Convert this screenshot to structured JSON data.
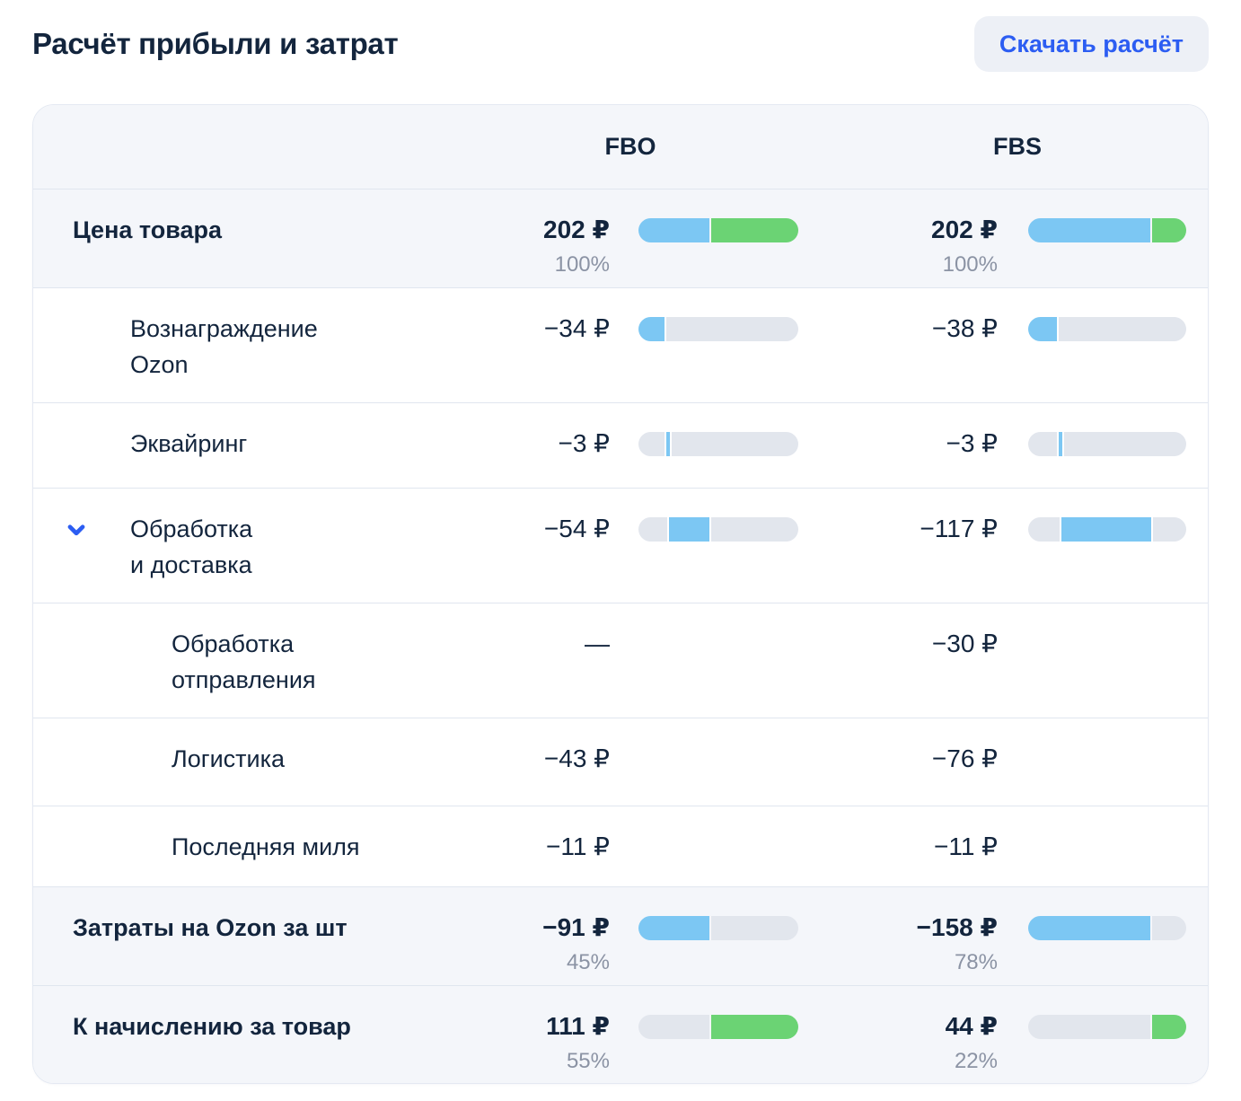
{
  "page_title": "Расчёт прибыли и затрат",
  "download_button": "Скачать расчёт",
  "colors": {
    "accent": "#2c5df2",
    "blue": "#7cc7f3",
    "green": "#6bd374",
    "track": "#e2e6ed",
    "percent_text": "#8b93a4"
  },
  "table": {
    "columns": [
      "FBO",
      "FBS"
    ],
    "rows": [
      {
        "label": "Цена товара",
        "bold": true,
        "shaded": true,
        "level": 0,
        "expandable": false,
        "fbo": {
          "value": "202 ₽",
          "percent": "100%",
          "bar": [
            {
              "c": "blue",
              "f": 0,
              "t": 0.45
            },
            {
              "c": "green",
              "f": 0.45,
              "t": 1
            }
          ]
        },
        "fbs": {
          "value": "202 ₽",
          "percent": "100%",
          "bar": [
            {
              "c": "blue",
              "f": 0,
              "t": 0.78
            },
            {
              "c": "green",
              "f": 0.78,
              "t": 1
            }
          ]
        }
      },
      {
        "label": "Вознаграждение\nOzon",
        "bold": false,
        "shaded": false,
        "level": 1,
        "expandable": false,
        "fbo": {
          "value": "−34 ₽",
          "percent": "",
          "bar": [
            {
              "c": "blue",
              "f": 0,
              "t": 0.168
            },
            {
              "c": "track",
              "f": 0.168,
              "t": 1
            }
          ]
        },
        "fbs": {
          "value": "−38 ₽",
          "percent": "",
          "bar": [
            {
              "c": "blue",
              "f": 0,
              "t": 0.188
            },
            {
              "c": "track",
              "f": 0.188,
              "t": 1
            }
          ]
        }
      },
      {
        "label": "Эквайринг",
        "bold": false,
        "shaded": false,
        "level": 1,
        "expandable": false,
        "fbo": {
          "value": "−3 ₽",
          "percent": "",
          "bar": [
            {
              "c": "track",
              "f": 0,
              "t": 0.168
            },
            {
              "c": "blue",
              "f": 0.168,
              "t": 0.2
            },
            {
              "c": "track",
              "f": 0.2,
              "t": 1
            }
          ]
        },
        "fbs": {
          "value": "−3 ₽",
          "percent": "",
          "bar": [
            {
              "c": "track",
              "f": 0,
              "t": 0.188
            },
            {
              "c": "blue",
              "f": 0.188,
              "t": 0.22
            },
            {
              "c": "track",
              "f": 0.22,
              "t": 1
            }
          ]
        }
      },
      {
        "label": "Обработка\nи доставка",
        "bold": false,
        "shaded": false,
        "level": 1,
        "expandable": true,
        "fbo": {
          "value": "−54 ₽",
          "percent": "",
          "bar": [
            {
              "c": "track",
              "f": 0,
              "t": 0.183
            },
            {
              "c": "blue",
              "f": 0.183,
              "t": 0.45
            },
            {
              "c": "track",
              "f": 0.45,
              "t": 1
            }
          ]
        },
        "fbs": {
          "value": "−117 ₽",
          "percent": "",
          "bar": [
            {
              "c": "track",
              "f": 0,
              "t": 0.203
            },
            {
              "c": "blue",
              "f": 0.203,
              "t": 0.782
            },
            {
              "c": "track",
              "f": 0.782,
              "t": 1
            }
          ]
        }
      },
      {
        "label": "Обработка\nотправления",
        "bold": false,
        "shaded": false,
        "level": 2,
        "expandable": false,
        "fbo": {
          "value": "—",
          "percent": "",
          "bar": null
        },
        "fbs": {
          "value": "−30 ₽",
          "percent": "",
          "bar": null
        }
      },
      {
        "label": "Логистика",
        "bold": false,
        "shaded": false,
        "level": 2,
        "expandable": false,
        "fbo": {
          "value": "−43 ₽",
          "percent": "",
          "bar": null
        },
        "fbs": {
          "value": "−76 ₽",
          "percent": "",
          "bar": null
        }
      },
      {
        "label": "Последняя миля",
        "bold": false,
        "shaded": false,
        "level": 2,
        "expandable": false,
        "fbo": {
          "value": "−11 ₽",
          "percent": "",
          "bar": null
        },
        "fbs": {
          "value": "−11 ₽",
          "percent": "",
          "bar": null
        }
      },
      {
        "label": "Затраты на Ozon за шт",
        "bold": true,
        "shaded": true,
        "level": 0,
        "expandable": false,
        "fbo": {
          "value": "−91 ₽",
          "percent": "45%",
          "bar": [
            {
              "c": "blue",
              "f": 0,
              "t": 0.45
            },
            {
              "c": "track",
              "f": 0.45,
              "t": 1
            }
          ]
        },
        "fbs": {
          "value": "−158 ₽",
          "percent": "78%",
          "bar": [
            {
              "c": "blue",
              "f": 0,
              "t": 0.78
            },
            {
              "c": "track",
              "f": 0.78,
              "t": 1
            }
          ]
        }
      },
      {
        "label": "К начислению за товар",
        "bold": true,
        "shaded": true,
        "level": 0,
        "expandable": false,
        "fbo": {
          "value": "111 ₽",
          "percent": "55%",
          "bar": [
            {
              "c": "track",
              "f": 0,
              "t": 0.45
            },
            {
              "c": "green",
              "f": 0.45,
              "t": 1
            }
          ]
        },
        "fbs": {
          "value": "44 ₽",
          "percent": "22%",
          "bar": [
            {
              "c": "track",
              "f": 0,
              "t": 0.78
            },
            {
              "c": "green",
              "f": 0.78,
              "t": 1
            }
          ]
        }
      }
    ]
  }
}
